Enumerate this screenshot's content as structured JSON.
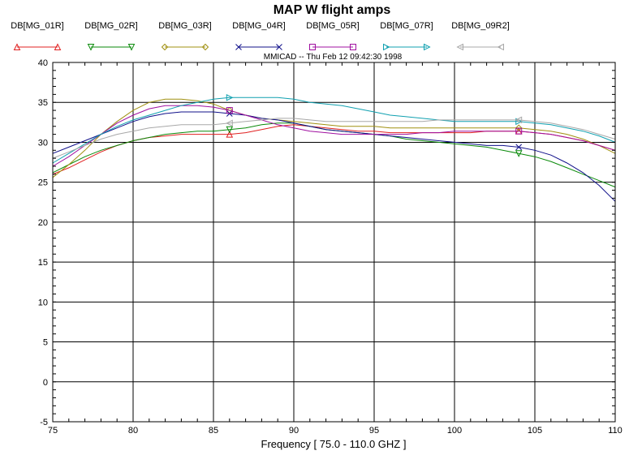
{
  "chart_data": {
    "type": "line",
    "title": "MAP W flight amps",
    "subtitle": "MMICAD -- Thu Feb 12 09:42:30 1998",
    "xlabel": "Frequency [ 75.0 - 110.0 GHZ ]",
    "ylabel": "",
    "xlim": [
      75,
      110
    ],
    "ylim": [
      -5,
      40
    ],
    "x_ticks": [
      75,
      80,
      85,
      90,
      95,
      100,
      105,
      110
    ],
    "y_ticks": [
      -5,
      0,
      5,
      10,
      15,
      20,
      25,
      30,
      35,
      40
    ],
    "grid": true,
    "legend_position": "top",
    "x": [
      75,
      76,
      77,
      78,
      79,
      80,
      81,
      82,
      83,
      84,
      85,
      86,
      87,
      88,
      89,
      90,
      91,
      92,
      93,
      94,
      95,
      96,
      97,
      98,
      99,
      100,
      101,
      102,
      103,
      104,
      105,
      106,
      107,
      108,
      109,
      110
    ],
    "series": [
      {
        "name": "DB[MG_01R]",
        "color": "#e02020",
        "marker": "triangle-up",
        "marker_x": [
          86,
          104
        ],
        "values": [
          26.0,
          26.8,
          27.8,
          28.8,
          29.6,
          30.2,
          30.6,
          30.8,
          31.0,
          31.0,
          31.0,
          31.0,
          31.2,
          31.6,
          32.0,
          32.2,
          32.0,
          31.8,
          31.6,
          31.4,
          31.4,
          31.2,
          31.2,
          31.2,
          31.2,
          31.2,
          31.2,
          31.4,
          31.4,
          31.4,
          31.2,
          31.0,
          30.6,
          30.2,
          29.6,
          29.0
        ]
      },
      {
        "name": "DB[MG_02R]",
        "color": "#0a8a0a",
        "marker": "triangle-down",
        "marker_x": [
          86,
          104
        ],
        "values": [
          26.2,
          27.2,
          28.2,
          29.0,
          29.6,
          30.2,
          30.6,
          31.0,
          31.2,
          31.4,
          31.4,
          31.6,
          31.8,
          32.2,
          32.4,
          32.4,
          32.0,
          31.6,
          31.4,
          31.2,
          31.0,
          30.8,
          30.4,
          30.2,
          30.0,
          29.8,
          29.6,
          29.4,
          29.0,
          28.6,
          28.2,
          27.6,
          26.8,
          26.0,
          25.2,
          24.4
        ]
      },
      {
        "name": "DB[MG_03R]",
        "color": "#a09010",
        "marker": "diamond",
        "marker_x": [
          86,
          104
        ],
        "values": [
          25.6,
          27.2,
          29.0,
          31.0,
          32.6,
          34.0,
          35.0,
          35.4,
          35.4,
          35.2,
          34.8,
          34.0,
          33.4,
          33.0,
          32.8,
          32.6,
          32.4,
          32.2,
          32.0,
          32.0,
          32.0,
          31.8,
          31.8,
          31.8,
          31.8,
          31.8,
          31.8,
          31.8,
          31.8,
          31.8,
          31.6,
          31.4,
          31.0,
          30.4,
          29.6,
          28.6
        ]
      },
      {
        "name": "DB[MG_04R]",
        "color": "#10108a",
        "marker": "bowtie",
        "marker_x": [
          86,
          104
        ],
        "values": [
          28.6,
          29.4,
          30.2,
          31.0,
          31.8,
          32.6,
          33.2,
          33.6,
          33.8,
          33.8,
          33.8,
          33.6,
          33.4,
          33.0,
          32.8,
          32.4,
          32.0,
          31.6,
          31.4,
          31.2,
          31.0,
          30.8,
          30.6,
          30.4,
          30.2,
          30.0,
          29.8,
          29.6,
          29.6,
          29.4,
          29.0,
          28.4,
          27.4,
          26.2,
          24.6,
          22.6
        ]
      },
      {
        "name": "DB[MG_05R]",
        "color": "#a010a0",
        "marker": "square",
        "marker_x": [
          86,
          104
        ],
        "values": [
          27.0,
          28.2,
          29.6,
          31.0,
          32.4,
          33.4,
          34.2,
          34.6,
          34.6,
          34.6,
          34.4,
          34.0,
          33.4,
          32.8,
          32.2,
          31.8,
          31.4,
          31.2,
          31.0,
          31.0,
          31.0,
          31.0,
          31.0,
          31.2,
          31.2,
          31.4,
          31.4,
          31.4,
          31.4,
          31.4,
          31.2,
          31.0,
          30.6,
          30.2,
          29.6,
          29.0
        ]
      },
      {
        "name": "DB[MG_07R]",
        "color": "#10a0b0",
        "marker": "triangle-right",
        "marker_x": [
          86,
          104
        ],
        "values": [
          27.4,
          28.6,
          29.8,
          31.0,
          32.0,
          32.8,
          33.4,
          34.0,
          34.6,
          35.0,
          35.4,
          35.6,
          35.6,
          35.6,
          35.6,
          35.4,
          35.0,
          34.8,
          34.6,
          34.2,
          33.8,
          33.4,
          33.2,
          33.0,
          32.8,
          32.6,
          32.6,
          32.6,
          32.6,
          32.6,
          32.4,
          32.2,
          31.8,
          31.4,
          30.8,
          30.0
        ]
      },
      {
        "name": "DB[MG_09R2]",
        "color": "#a8a8a8",
        "marker": "triangle-left",
        "marker_x": [
          86,
          104
        ],
        "values": [
          28.0,
          28.8,
          29.6,
          30.4,
          31.0,
          31.4,
          31.8,
          32.0,
          32.2,
          32.2,
          32.2,
          32.4,
          32.6,
          32.8,
          33.0,
          33.0,
          32.8,
          32.6,
          32.6,
          32.6,
          32.6,
          32.6,
          32.6,
          32.6,
          32.8,
          32.8,
          32.8,
          32.8,
          32.8,
          32.8,
          32.6,
          32.4,
          32.0,
          31.6,
          31.0,
          30.4
        ]
      }
    ]
  }
}
